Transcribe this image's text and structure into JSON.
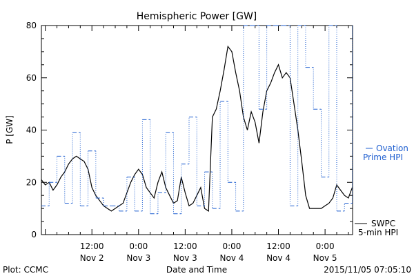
{
  "chart_data": {
    "type": "line",
    "title": "Hemispheric Power [GW]",
    "xlabel": "Date and Time",
    "ylabel": "P [GW]",
    "xlim": [
      "2015-11-01T23:00",
      "2015-11-05T07:05"
    ],
    "ylim": [
      0,
      80
    ],
    "grid": false,
    "y_ticks": [
      "0",
      "20",
      "40",
      "60",
      "80"
    ],
    "x_ticks": [
      {
        "time": "2015-11-02T12:00",
        "time_label": "12:00",
        "date_label": "Nov 2"
      },
      {
        "time": "2015-11-03T00:00",
        "time_label": "0:00",
        "date_label": "Nov 3"
      },
      {
        "time": "2015-11-03T12:00",
        "time_label": "12:00",
        "date_label": "Nov 3"
      },
      {
        "time": "2015-11-04T00:00",
        "time_label": "0:00",
        "date_label": "Nov 4"
      },
      {
        "time": "2015-11-04T12:00",
        "time_label": "12:00",
        "date_label": "Nov 4"
      },
      {
        "time": "2015-11-05T00:00",
        "time_label": "0:00",
        "date_label": "Nov 5"
      }
    ],
    "series": [
      {
        "name": "SWPC 5-min HPI",
        "color": "#000000",
        "style": "solid",
        "x": [
          "2015-11-01T23:00",
          "2015-11-02T00:00",
          "2015-11-02T01:00",
          "2015-11-02T02:00",
          "2015-11-02T03:00",
          "2015-11-02T04:00",
          "2015-11-02T05:00",
          "2015-11-02T06:00",
          "2015-11-02T07:00",
          "2015-11-02T08:00",
          "2015-11-02T09:00",
          "2015-11-02T10:00",
          "2015-11-02T11:00",
          "2015-11-02T12:00",
          "2015-11-02T13:00",
          "2015-11-02T14:00",
          "2015-11-02T15:00",
          "2015-11-02T16:00",
          "2015-11-02T17:00",
          "2015-11-02T18:00",
          "2015-11-02T19:00",
          "2015-11-02T20:00",
          "2015-11-02T21:00",
          "2015-11-02T22:00",
          "2015-11-02T23:00",
          "2015-11-03T00:00",
          "2015-11-03T01:00",
          "2015-11-03T02:00",
          "2015-11-03T03:00",
          "2015-11-03T04:00",
          "2015-11-03T05:00",
          "2015-11-03T06:00",
          "2015-11-03T07:00",
          "2015-11-03T08:00",
          "2015-11-03T09:00",
          "2015-11-03T10:00",
          "2015-11-03T11:00",
          "2015-11-03T12:00",
          "2015-11-03T13:00",
          "2015-11-03T14:00",
          "2015-11-03T15:00",
          "2015-11-03T16:00",
          "2015-11-03T17:00",
          "2015-11-03T18:00",
          "2015-11-03T19:00",
          "2015-11-03T20:00",
          "2015-11-03T21:00",
          "2015-11-03T22:00",
          "2015-11-03T23:00",
          "2015-11-04T00:00",
          "2015-11-04T01:00",
          "2015-11-04T02:00",
          "2015-11-04T03:00",
          "2015-11-04T04:00",
          "2015-11-04T05:00",
          "2015-11-04T06:00",
          "2015-11-04T07:00",
          "2015-11-04T08:00",
          "2015-11-04T09:00",
          "2015-11-04T10:00",
          "2015-11-04T11:00",
          "2015-11-04T12:00",
          "2015-11-04T13:00",
          "2015-11-04T14:00",
          "2015-11-04T15:00",
          "2015-11-04T16:00",
          "2015-11-04T17:00",
          "2015-11-04T18:00",
          "2015-11-04T19:00",
          "2015-11-04T20:00",
          "2015-11-04T21:00",
          "2015-11-04T22:00",
          "2015-11-04T23:00",
          "2015-11-05T00:00",
          "2015-11-05T01:00",
          "2015-11-05T02:00",
          "2015-11-05T03:00",
          "2015-11-05T04:00",
          "2015-11-05T05:00",
          "2015-11-05T06:00",
          "2015-11-05T07:00"
        ],
        "values": [
          21,
          19,
          20,
          17,
          19,
          22,
          24,
          27,
          29,
          30,
          29,
          28,
          25,
          18,
          15,
          13,
          11,
          10,
          9,
          10,
          11,
          12,
          16,
          20,
          23,
          25,
          23,
          18,
          16,
          14,
          20,
          24,
          18,
          15,
          12,
          13,
          22,
          16,
          11,
          12,
          15,
          18,
          10,
          9,
          45,
          48,
          55,
          63,
          72,
          70,
          62,
          55,
          45,
          40,
          47,
          43,
          35,
          47,
          55,
          58,
          62,
          65,
          60,
          62,
          60,
          50,
          40,
          28,
          15,
          10,
          10,
          10,
          10,
          11,
          12,
          14,
          19,
          17,
          15,
          14,
          18
        ]
      },
      {
        "name": "Ovation Prime HPI",
        "color": "#1f5fd0",
        "style": "dotted-step",
        "x": [
          "2015-11-01T23:00",
          "2015-11-02T01:00",
          "2015-11-02T03:00",
          "2015-11-02T05:00",
          "2015-11-02T07:00",
          "2015-11-02T09:00",
          "2015-11-02T11:00",
          "2015-11-02T13:00",
          "2015-11-02T15:00",
          "2015-11-02T17:00",
          "2015-11-02T19:00",
          "2015-11-02T21:00",
          "2015-11-02T23:00",
          "2015-11-03T01:00",
          "2015-11-03T03:00",
          "2015-11-03T05:00",
          "2015-11-03T07:00",
          "2015-11-03T09:00",
          "2015-11-03T11:00",
          "2015-11-03T13:00",
          "2015-11-03T15:00",
          "2015-11-03T17:00",
          "2015-11-03T19:00",
          "2015-11-03T21:00",
          "2015-11-03T23:00",
          "2015-11-04T01:00",
          "2015-11-04T03:00",
          "2015-11-04T05:00",
          "2015-11-04T07:00",
          "2015-11-04T09:00",
          "2015-11-04T11:00",
          "2015-11-04T13:00",
          "2015-11-04T15:00",
          "2015-11-04T17:00",
          "2015-11-04T19:00",
          "2015-11-04T21:00",
          "2015-11-04T23:00",
          "2015-11-05T01:00",
          "2015-11-05T03:00",
          "2015-11-05T05:00",
          "2015-11-05T07:00"
        ],
        "values": [
          11,
          20,
          30,
          12,
          39,
          11,
          32,
          14,
          11,
          11,
          9,
          22,
          9,
          44,
          8,
          16,
          39,
          8,
          27,
          45,
          11,
          24,
          10,
          51,
          20,
          9,
          80,
          80,
          48,
          80,
          80,
          82,
          11,
          82,
          64,
          48,
          22,
          84,
          9,
          12,
          80
        ]
      }
    ],
    "legend": [
      {
        "series": "Ovation Prime HPI",
        "lines": [
          "Ovation",
          "Prime HPI"
        ],
        "placement": "right"
      },
      {
        "series": "SWPC 5-min HPI",
        "lines": [
          "SWPC",
          "5-min HPI"
        ],
        "placement": "right"
      }
    ]
  },
  "footer": {
    "plot_label": "Plot: CCMC",
    "timestamp": "2015/11/05 07:05:10"
  },
  "colors": {
    "axis": "#000000",
    "swpc": "#000000",
    "ovation": "#1f5fd0",
    "background": "#ffffff"
  }
}
